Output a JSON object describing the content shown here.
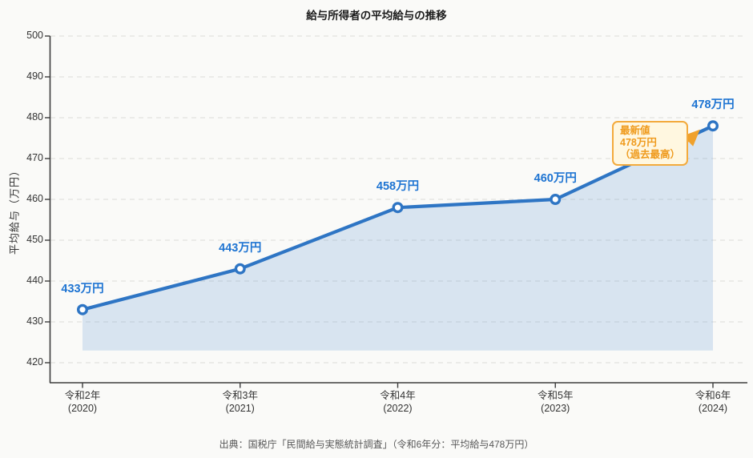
{
  "title": "給与所得者の平均給与の推移",
  "source": "出典：国税庁「民間給与実態統計調査」（令和6年分：平均給与478万円）",
  "chart_data": {
    "type": "line",
    "title": "給与所得者の平均給与の推移",
    "xlabel": "",
    "ylabel": "平均給与（万円）",
    "categories": [
      "令和2年",
      "令和3年",
      "令和4年",
      "令和5年",
      "令和6年"
    ],
    "category_sublabels": [
      "(2020)",
      "(2021)",
      "(2022)",
      "(2023)",
      "(2024)"
    ],
    "values": [
      433,
      443,
      458,
      460,
      478
    ],
    "point_labels": [
      "433万円",
      "443万円",
      "458万円",
      "460万円",
      "478万円"
    ],
    "yticks": [
      420,
      430,
      440,
      450,
      460,
      470,
      480,
      490,
      500
    ],
    "ylim": [
      415,
      500
    ],
    "area_fill_baseline": 423,
    "grid": "horizontal-dashed",
    "legend": "none",
    "colors": {
      "line": "#2e75c4",
      "marker_fill": "#ffffff",
      "area_fill": "rgba(46,117,196,0.16)",
      "point_label": "#1e74d2",
      "grid_line": "#e2e2df",
      "axis": "#3c3c3c",
      "tick_label": "#333333",
      "background": "#fafaf8"
    }
  },
  "annotation": {
    "lines": [
      "最新値",
      "478万円",
      "（過去最高）"
    ],
    "target_value": 478,
    "text_color": "#ef9a1c",
    "border_color": "#f3aa3c",
    "background": "#fff7e0",
    "arrow_color": "#f0a12c"
  }
}
